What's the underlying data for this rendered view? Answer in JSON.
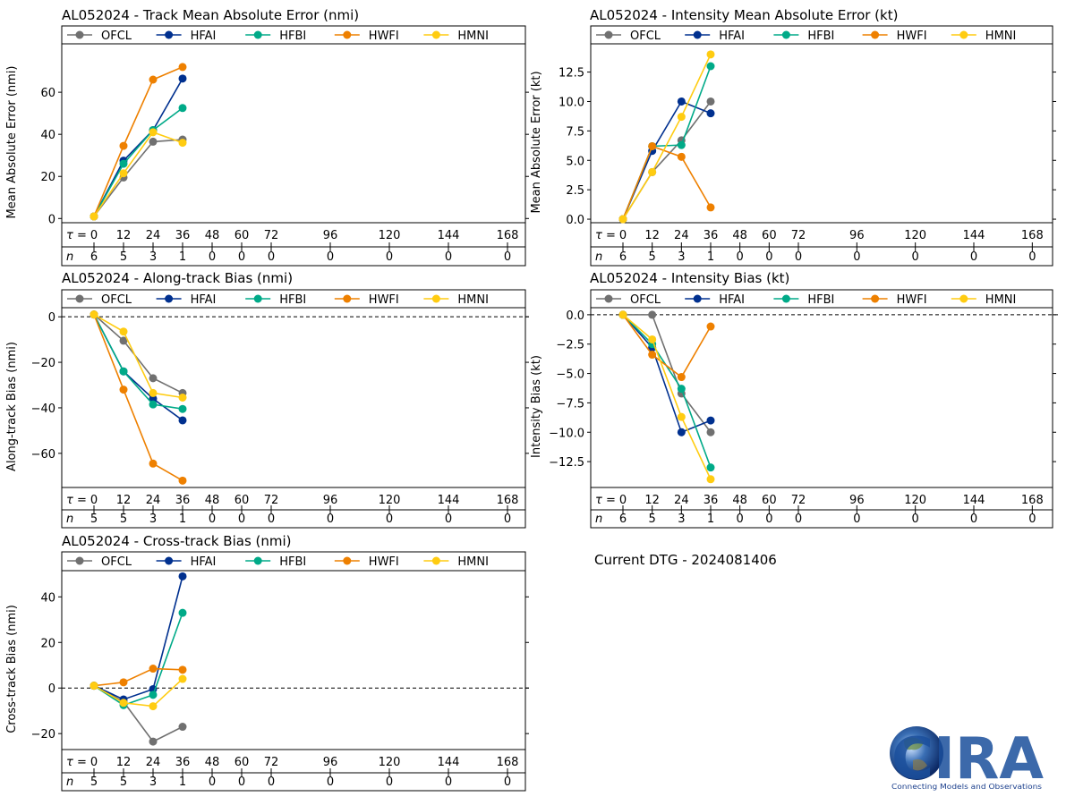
{
  "figure": {
    "current_dtg": "Current DTG - 2024081406",
    "logo": {
      "text": "CIRA",
      "tagline": "Connecting Models and Observations"
    },
    "tau_prefix": "τ =",
    "n_prefix": "n",
    "colors": {
      "OFCL": "#707070",
      "HFAI": "#00308f",
      "HFBI": "#00aa88",
      "HWFI": "#ee8000",
      "HMNI": "#ffcc11"
    }
  },
  "chart_data": [
    {
      "id": "track",
      "type": "line",
      "title": "AL052024 - Track Mean Absolute Error (nmi)",
      "ylabel": "Mean Absolute Error (nmi)",
      "xlabel": "",
      "ylim": [
        -2,
        83
      ],
      "yticks": [
        0,
        20,
        40,
        60
      ],
      "ytick_labels": [
        "0",
        "20",
        "40",
        "60"
      ],
      "zero_line": false,
      "x_ticks": [
        0,
        12,
        24,
        36,
        48,
        60,
        72,
        96,
        120,
        144,
        168
      ],
      "n_counts": [
        6,
        5,
        3,
        1,
        0,
        0,
        0,
        0,
        0,
        0,
        0
      ],
      "legend": [
        "OFCL",
        "HFAI",
        "HFBI",
        "HWFI",
        "HMNI"
      ],
      "series": [
        {
          "name": "OFCL",
          "x": [
            0,
            12,
            24,
            36
          ],
          "values": [
            1,
            19.5,
            36.5,
            37.5
          ]
        },
        {
          "name": "HFAI",
          "x": [
            0,
            12,
            24,
            36
          ],
          "values": [
            1,
            27.5,
            42,
            66.5
          ]
        },
        {
          "name": "HFBI",
          "x": [
            0,
            12,
            24,
            36
          ],
          "values": [
            1,
            26,
            42,
            52.5
          ]
        },
        {
          "name": "HWFI",
          "x": [
            0,
            12,
            24,
            36
          ],
          "values": [
            1,
            34.5,
            66,
            72
          ]
        },
        {
          "name": "HMNI",
          "x": [
            0,
            12,
            24,
            36
          ],
          "values": [
            1,
            21.5,
            41,
            36
          ]
        }
      ]
    },
    {
      "id": "intensity",
      "type": "line",
      "title": "AL052024 - Intensity Mean Absolute Error (kt)",
      "ylabel": "Mean Absolute Error (kt)",
      "xlabel": "",
      "ylim": [
        -0.3,
        14.9
      ],
      "yticks": [
        0,
        2.5,
        5,
        7.5,
        10,
        12.5
      ],
      "ytick_labels": [
        "0.0",
        "2.5",
        "5.0",
        "7.5",
        "10.0",
        "12.5"
      ],
      "zero_line": false,
      "x_ticks": [
        0,
        12,
        24,
        36,
        48,
        60,
        72,
        96,
        120,
        144,
        168
      ],
      "n_counts": [
        6,
        5,
        3,
        1,
        0,
        0,
        0,
        0,
        0,
        0,
        0
      ],
      "legend": [
        "OFCL",
        "HFAI",
        "HFBI",
        "HWFI",
        "HMNI"
      ],
      "series": [
        {
          "name": "OFCL",
          "x": [
            0,
            12,
            24,
            36
          ],
          "values": [
            0,
            4,
            6.7,
            10
          ]
        },
        {
          "name": "HFAI",
          "x": [
            0,
            12,
            24,
            36
          ],
          "values": [
            0,
            5.8,
            10,
            9
          ]
        },
        {
          "name": "HFBI",
          "x": [
            0,
            12,
            24,
            36
          ],
          "values": [
            0,
            6.2,
            6.3,
            13
          ]
        },
        {
          "name": "HWFI",
          "x": [
            0,
            12,
            24,
            36
          ],
          "values": [
            0,
            6.2,
            5.3,
            1
          ]
        },
        {
          "name": "HMNI",
          "x": [
            0,
            12,
            24,
            36
          ],
          "values": [
            0,
            4,
            8.7,
            14
          ]
        }
      ]
    },
    {
      "id": "along",
      "type": "line",
      "title": "AL052024 - Along-track Bias (nmi)",
      "ylabel": "Along-track Bias (nmi)",
      "xlabel": "",
      "ylim": [
        -75,
        4
      ],
      "yticks": [
        -60,
        -40,
        -20,
        0
      ],
      "ytick_labels": [
        "−60",
        "−40",
        "−20",
        "0"
      ],
      "zero_line": true,
      "x_ticks": [
        0,
        12,
        24,
        36,
        48,
        60,
        72,
        96,
        120,
        144,
        168
      ],
      "n_counts": [
        5,
        5,
        3,
        1,
        0,
        0,
        0,
        0,
        0,
        0,
        0
      ],
      "legend": [
        "OFCL",
        "HFAI",
        "HFBI",
        "HWFI",
        "HMNI"
      ],
      "series": [
        {
          "name": "OFCL",
          "x": [
            0,
            12,
            24,
            36
          ],
          "values": [
            1,
            -10.5,
            -27,
            -33.5
          ]
        },
        {
          "name": "HFAI",
          "x": [
            0,
            12,
            24,
            36
          ],
          "values": [
            1,
            -24,
            -36,
            -45.5
          ]
        },
        {
          "name": "HFBI",
          "x": [
            0,
            12,
            24,
            36
          ],
          "values": [
            1,
            -24,
            -38.5,
            -40.5
          ]
        },
        {
          "name": "HWFI",
          "x": [
            0,
            12,
            24,
            36
          ],
          "values": [
            1,
            -32,
            -64.5,
            -72
          ]
        },
        {
          "name": "HMNI",
          "x": [
            0,
            12,
            24,
            36
          ],
          "values": [
            1,
            -6.5,
            -33.5,
            -35.5
          ]
        }
      ]
    },
    {
      "id": "intbias",
      "type": "line",
      "title": "AL052024 - Intensity Bias (kt)",
      "ylabel": "Intensity Bias (kt)",
      "xlabel": "",
      "ylim": [
        -14.7,
        0.6
      ],
      "yticks": [
        -12.5,
        -10,
        -7.5,
        -5,
        -2.5,
        0
      ],
      "ytick_labels": [
        "−12.5",
        "−10.0",
        "−7.5",
        "−5.0",
        "−2.5",
        "0.0"
      ],
      "zero_line": true,
      "x_ticks": [
        0,
        12,
        24,
        36,
        48,
        60,
        72,
        96,
        120,
        144,
        168
      ],
      "n_counts": [
        6,
        5,
        3,
        1,
        0,
        0,
        0,
        0,
        0,
        0,
        0
      ],
      "legend": [
        "OFCL",
        "HFAI",
        "HFBI",
        "HWFI",
        "HMNI"
      ],
      "series": [
        {
          "name": "OFCL",
          "x": [
            0,
            12,
            24,
            36
          ],
          "values": [
            0,
            0,
            -6.7,
            -10
          ]
        },
        {
          "name": "HFAI",
          "x": [
            0,
            12,
            24,
            36
          ],
          "values": [
            0,
            -2.8,
            -10,
            -9
          ]
        },
        {
          "name": "HFBI",
          "x": [
            0,
            12,
            24,
            36
          ],
          "values": [
            0,
            -2.5,
            -6.3,
            -13
          ]
        },
        {
          "name": "HWFI",
          "x": [
            0,
            12,
            24,
            36
          ],
          "values": [
            0,
            -3.4,
            -5.3,
            -1
          ]
        },
        {
          "name": "HMNI",
          "x": [
            0,
            12,
            24,
            36
          ],
          "values": [
            0,
            -2.1,
            -8.7,
            -14
          ]
        }
      ]
    },
    {
      "id": "cross",
      "type": "line",
      "title": "AL052024 - Cross-track Bias (nmi)",
      "ylabel": "Cross-track Bias (nmi)",
      "xlabel": "",
      "ylim": [
        -27,
        51.5
      ],
      "yticks": [
        -20,
        0,
        20,
        40
      ],
      "ytick_labels": [
        "−20",
        "0",
        "20",
        "40"
      ],
      "zero_line": true,
      "x_ticks": [
        0,
        12,
        24,
        36,
        48,
        60,
        72,
        96,
        120,
        144,
        168
      ],
      "n_counts": [
        5,
        5,
        3,
        1,
        0,
        0,
        0,
        0,
        0,
        0,
        0
      ],
      "legend": [
        "OFCL",
        "HFAI",
        "HFBI",
        "HWFI",
        "HMNI"
      ],
      "series": [
        {
          "name": "OFCL",
          "x": [
            0,
            12,
            24,
            36
          ],
          "values": [
            1,
            -6,
            -23.5,
            -17
          ]
        },
        {
          "name": "HFAI",
          "x": [
            0,
            12,
            24,
            36
          ],
          "values": [
            1,
            -5,
            -0.5,
            49
          ]
        },
        {
          "name": "HFBI",
          "x": [
            0,
            12,
            24,
            36
          ],
          "values": [
            1,
            -7.5,
            -3,
            33
          ]
        },
        {
          "name": "HWFI",
          "x": [
            0,
            12,
            24,
            36
          ],
          "values": [
            1,
            2.5,
            8.5,
            8
          ]
        },
        {
          "name": "HMNI",
          "x": [
            0,
            12,
            24,
            36
          ],
          "values": [
            1,
            -6.5,
            -8,
            4
          ]
        }
      ]
    }
  ]
}
